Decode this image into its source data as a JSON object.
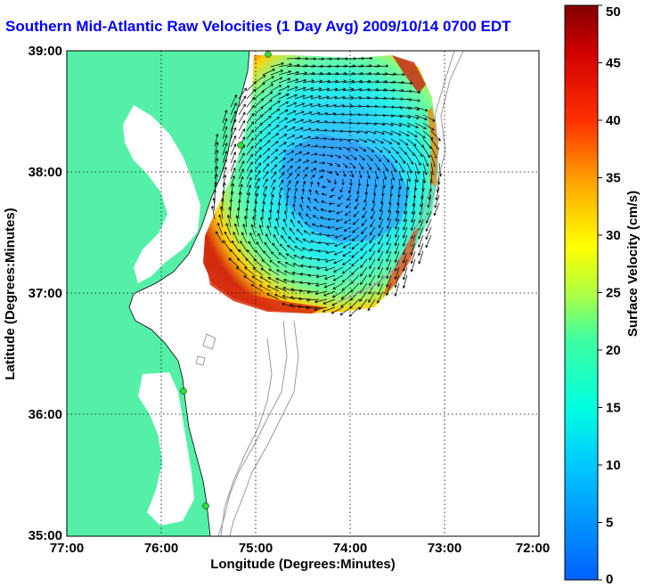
{
  "title": "Southern Mid-Atlantic Raw Velocities (1 Day Avg) 2009/10/14 0700 EDT",
  "xlabel": "Longitude (Degrees:Minutes)",
  "ylabel": "Latitude (Degrees:Minutes)",
  "xticks": [
    "77:00",
    "76:00",
    "75:00",
    "74:00",
    "73:00",
    "72:00"
  ],
  "yticks": [
    "39:00",
    "38:00",
    "37:00",
    "36:00",
    "35:00"
  ],
  "colorbar": {
    "label": "Surface Velocity (cm/s)",
    "ticks": [
      "0",
      "5",
      "10",
      "15",
      "20",
      "25",
      "30",
      "35",
      "40",
      "45",
      "50"
    ],
    "min": 0,
    "max": 50
  },
  "colors": {
    "land": "#55f0a8",
    "water": "#ffffff",
    "title": "#0000ff",
    "station": "#33dd33",
    "contour": "#9a9a9a"
  },
  "chart_data": {
    "type": "heatmap",
    "xlim": [
      -77,
      -72
    ],
    "ylim": [
      35,
      39
    ],
    "grid": true,
    "color_scale": "jet",
    "units": "cm/s",
    "stations": [
      "station-1",
      "station-2",
      "station-3",
      "station-4"
    ]
  }
}
